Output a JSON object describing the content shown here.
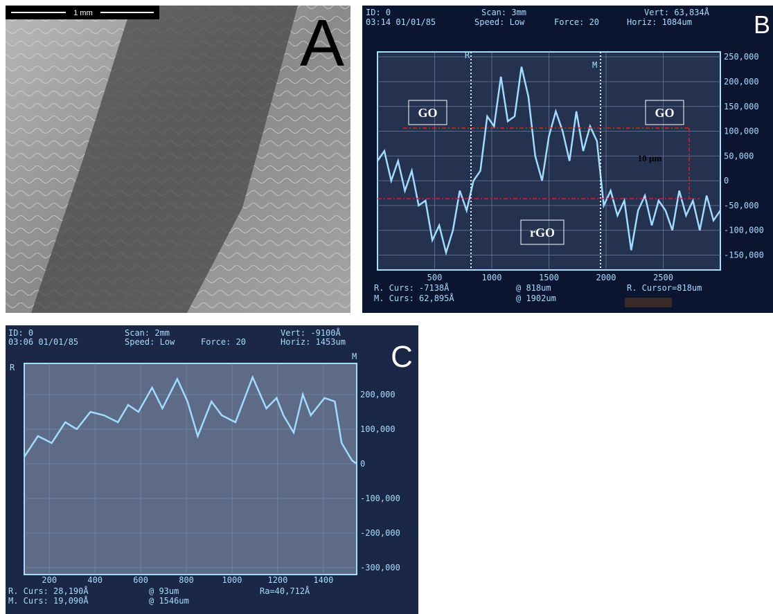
{
  "panel_a": {
    "label": "A",
    "scale_bar": "1 mm"
  },
  "chart_data": [
    {
      "type": "line",
      "label": "B",
      "header": [
        "ID: 0",
        "Scan: 3mm",
        "Vert: 63,834Å",
        "03:14 01/01/85",
        "Speed: Low",
        "Force: 20",
        "Horiz: 1084um"
      ],
      "footer": [
        "R. Curs: -7138Å",
        "@ 818um",
        "R. Cursor=818um",
        "M. Curs: 62,895Å",
        "@ 1902um"
      ],
      "cursors": [
        "R",
        "M"
      ],
      "annotations": [
        "GO",
        "GO",
        "rGO",
        "10 µm"
      ],
      "x": [
        0,
        60,
        120,
        180,
        240,
        300,
        360,
        420,
        480,
        540,
        600,
        660,
        720,
        780,
        840,
        900,
        960,
        1020,
        1080,
        1140,
        1200,
        1260,
        1320,
        1380,
        1440,
        1500,
        1560,
        1620,
        1680,
        1740,
        1800,
        1860,
        1920,
        1980,
        2040,
        2100,
        2160,
        2220,
        2280,
        2340,
        2400,
        2460,
        2520,
        2580,
        2640,
        2700,
        2760,
        2820,
        2880,
        2940,
        3000
      ],
      "series": [
        {
          "color": "#9fdcff",
          "values": [
            40000,
            60000,
            0,
            40000,
            -20000,
            20000,
            -50000,
            -40000,
            -120000,
            -90000,
            -145000,
            -100000,
            -20000,
            -60000,
            0,
            20000,
            130000,
            110000,
            210000,
            120000,
            130000,
            230000,
            170000,
            50000,
            0,
            90000,
            140000,
            100000,
            40000,
            140000,
            60000,
            110000,
            80000,
            -50000,
            -20000,
            -70000,
            -40000,
            -140000,
            -60000,
            -30000,
            -90000,
            -40000,
            -60000,
            -100000,
            -20000,
            -70000,
            -40000,
            -100000,
            -30000,
            -80000,
            -60000
          ]
        }
      ],
      "xlim": [
        0,
        3000
      ],
      "ylim": [
        -180000,
        260000
      ],
      "xticks": [
        500,
        1000,
        1500,
        2000,
        2500
      ],
      "yticks": [
        {
          "value": 250000,
          "label": "250,000"
        },
        {
          "value": 200000,
          "label": "200,000"
        },
        {
          "value": 150000,
          "label": "150,000"
        },
        {
          "value": 100000,
          "label": "100,000"
        },
        {
          "value": 50000,
          "label": "50,000"
        },
        0,
        {
          "value": -50000,
          "label": "-50,000"
        },
        {
          "value": -100000,
          "label": "-100,000"
        },
        {
          "value": -150000,
          "label": "-150,000"
        }
      ],
      "grid": true
    },
    {
      "type": "line",
      "label": "C",
      "header": [
        "ID: 0",
        "Scan: 2mm",
        "Vert: -9100Å",
        "03:06 01/01/85",
        "Speed: Low",
        "Force: 20",
        "Horiz: 1453um"
      ],
      "footer": [
        "R. Curs: 28,190Å",
        "@ 93um",
        "Ra=40,712Å",
        "M. Curs: 19,090Å",
        "@ 1546um"
      ],
      "cursors": [
        "R",
        "M"
      ],
      "x": [
        90,
        150,
        210,
        270,
        320,
        380,
        440,
        500,
        545,
        590,
        650,
        695,
        760,
        805,
        850,
        910,
        955,
        1015,
        1090,
        1150,
        1195,
        1225,
        1270,
        1310,
        1345,
        1405,
        1450,
        1480,
        1525,
        1546
      ],
      "series": [
        {
          "color": "#9fdcff",
          "values": [
            20000,
            80000,
            60000,
            120000,
            100000,
            150000,
            140000,
            120000,
            170000,
            150000,
            220000,
            160000,
            245000,
            180000,
            80000,
            180000,
            140000,
            120000,
            250000,
            160000,
            190000,
            140000,
            90000,
            200000,
            140000,
            190000,
            180000,
            60000,
            10000,
            0
          ]
        }
      ],
      "xlim": [
        90,
        1546
      ],
      "ylim": [
        -320000,
        290000
      ],
      "xticks": [
        200,
        400,
        600,
        800,
        1000,
        1200,
        1400
      ],
      "yticks": [
        {
          "value": 200000,
          "label": "200,000"
        },
        {
          "value": 100000,
          "label": "100,000"
        },
        0,
        {
          "value": -100000,
          "label": "-100,000"
        },
        {
          "value": -200000,
          "label": "-200,000"
        },
        {
          "value": -300000,
          "label": "-300,000"
        }
      ],
      "grid": true
    }
  ]
}
